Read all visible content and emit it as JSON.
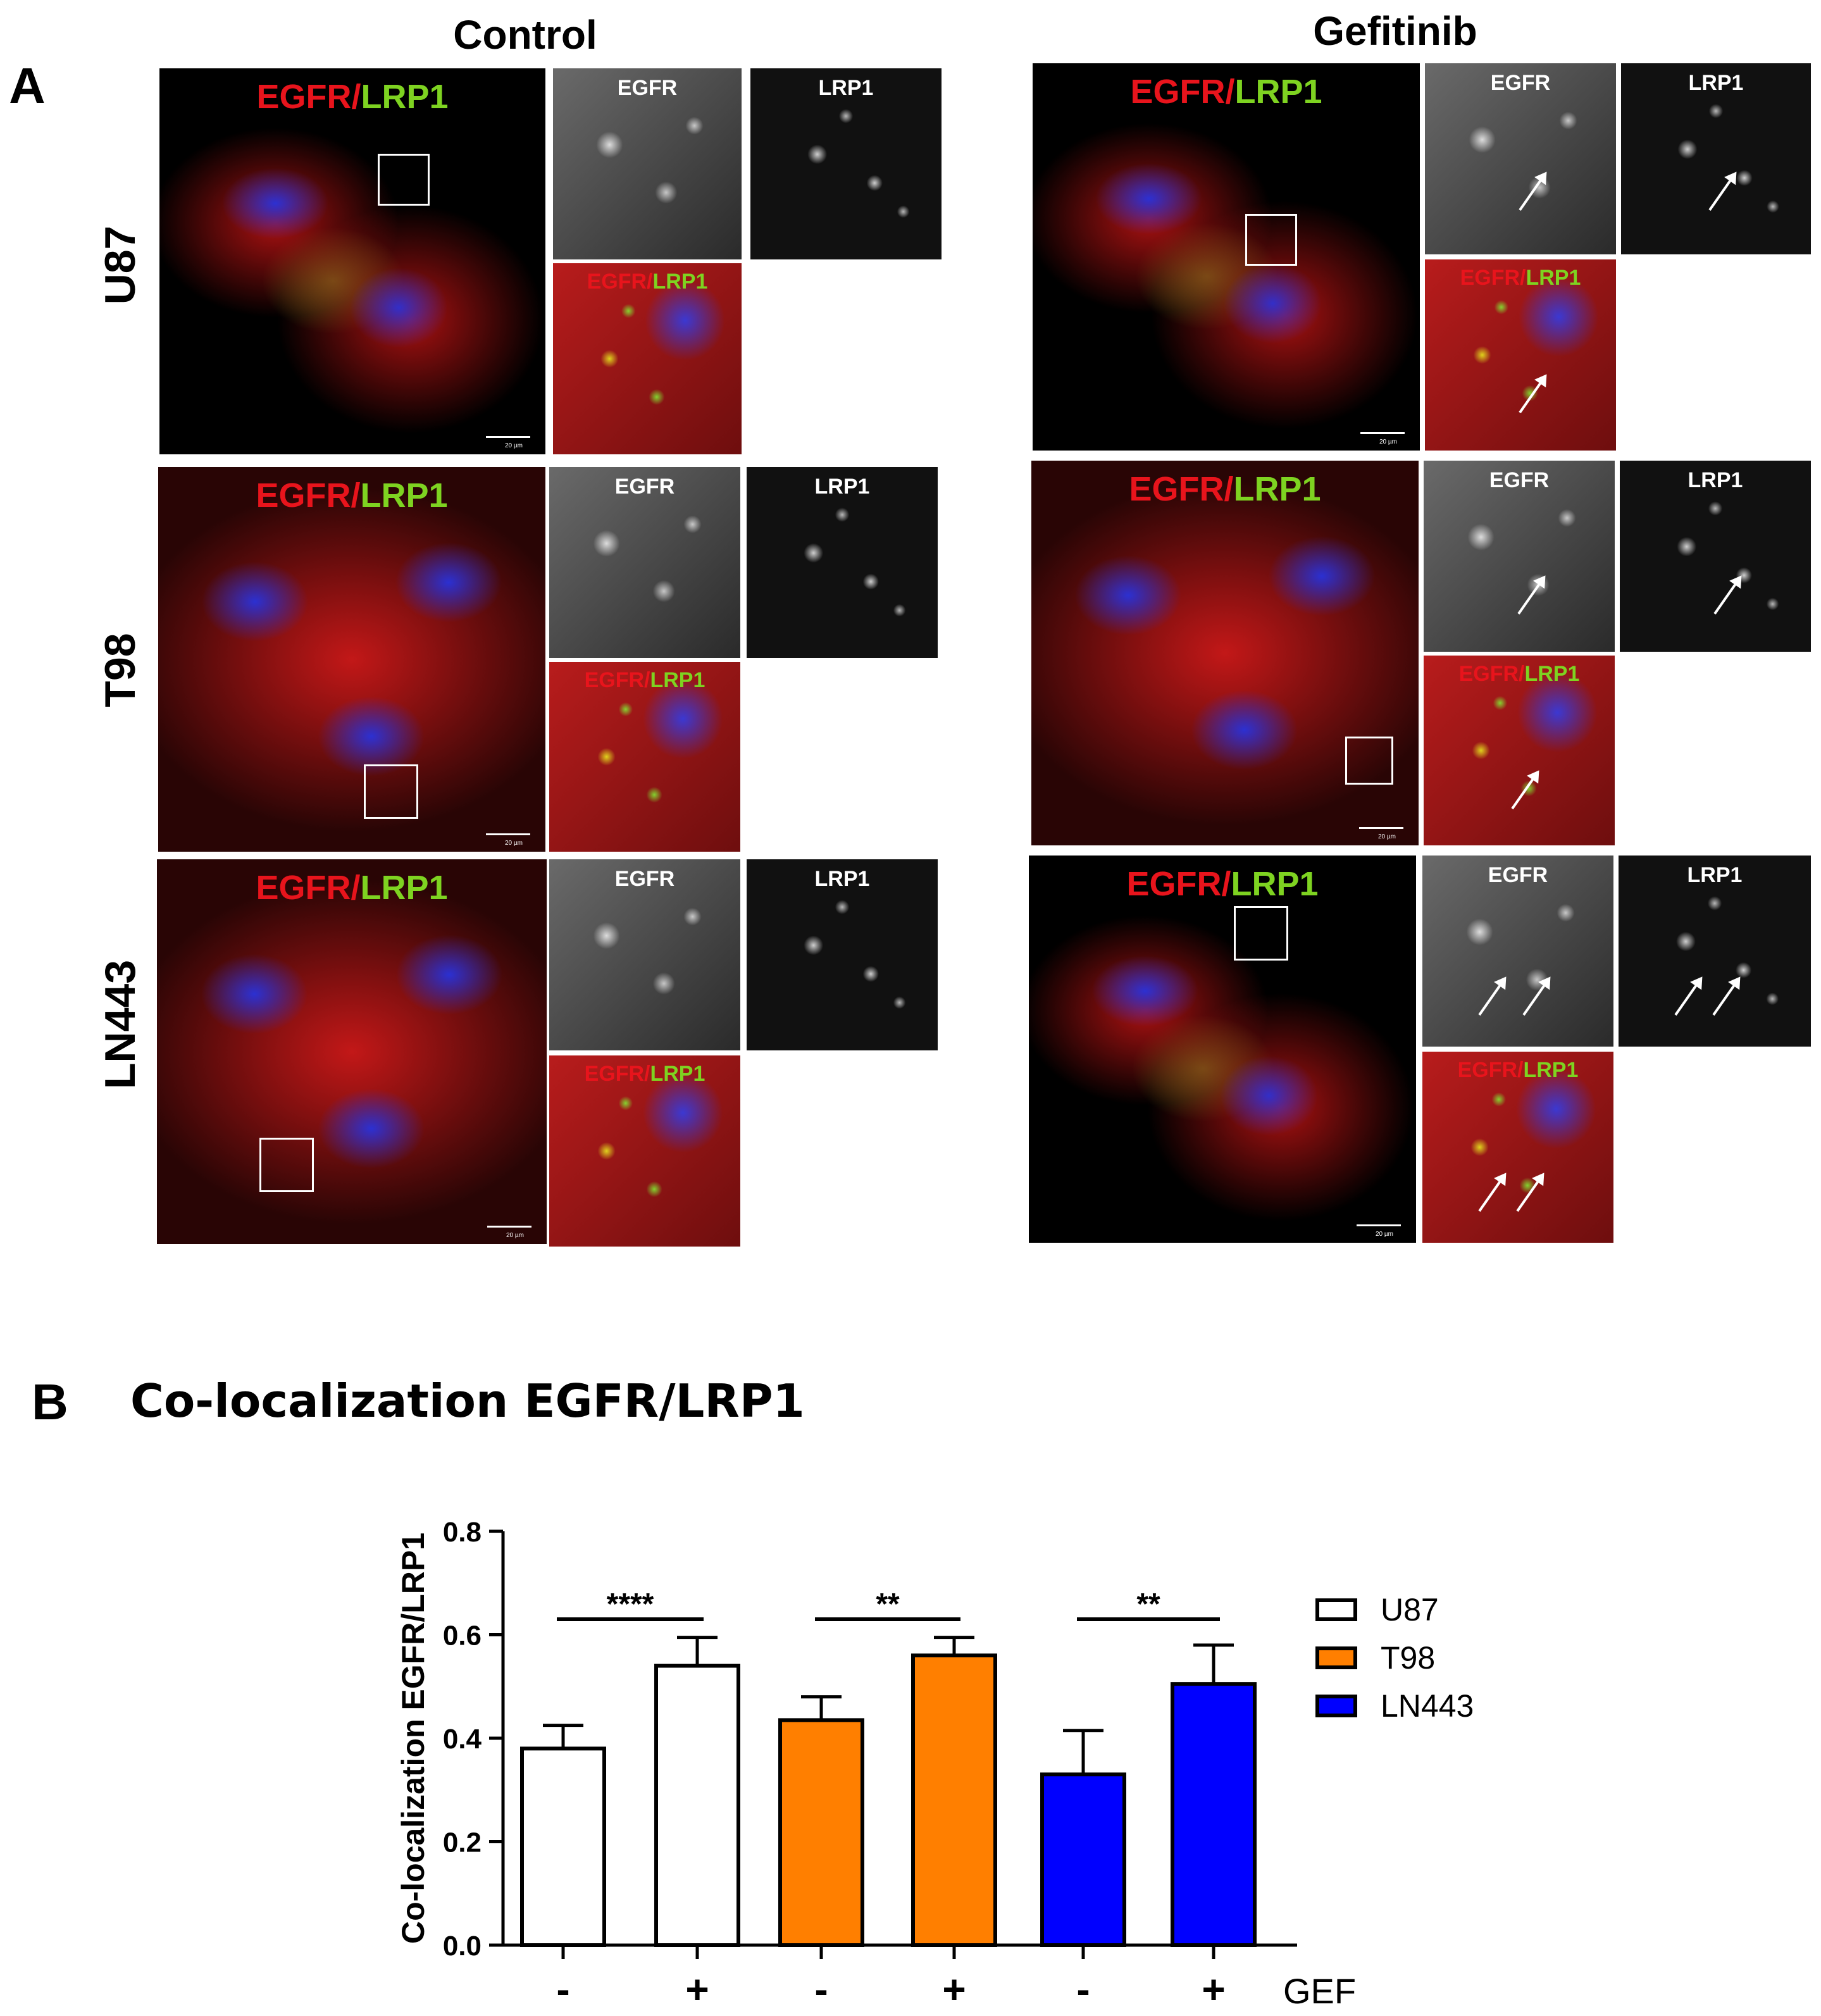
{
  "panel_a": {
    "letter": "A",
    "columns": [
      "Control",
      "Gefitinib"
    ],
    "rows": [
      "U87",
      "T98",
      "LN443"
    ],
    "main_label_red": "EGFR/",
    "main_label_green": "LRP1",
    "gray_labels": [
      "EGFR",
      "LRP1"
    ],
    "merge_label_red": "EGFR/",
    "merge_label_green": "LRP1",
    "scale_text": "20 µm"
  },
  "panel_b": {
    "letter": "B",
    "title": "Co-localization EGFR/LRP1",
    "gef_label": "GEF",
    "colors": {
      "U87": "#ffffff",
      "T98": "#ff7f00",
      "LN443": "#0000ff",
      "outline": "#000000"
    }
  },
  "chart_data": {
    "type": "bar",
    "title": "Co-localization EGFR/LRP1",
    "ylabel": "Co-localization EGFR/LRP1",
    "xlabel": "",
    "ylim": [
      0,
      0.8
    ],
    "yticks": [
      "0.0",
      "0.2",
      "0.4",
      "0.6",
      "0.8"
    ],
    "x_tick_labels": [
      "-",
      "+",
      "-",
      "+",
      "-",
      "+"
    ],
    "x_axis_suffix": "GEF",
    "legend_position": "right",
    "series": [
      {
        "name": "U87",
        "color": "#ffffff",
        "values": [
          0.38,
          0.54
        ],
        "errors": [
          0.045,
          0.055
        ]
      },
      {
        "name": "T98",
        "color": "#ff7f00",
        "values": [
          0.435,
          0.56
        ],
        "errors": [
          0.045,
          0.035
        ]
      },
      {
        "name": "LN443",
        "color": "#0000ff",
        "values": [
          0.33,
          0.505
        ],
        "errors": [
          0.085,
          0.075
        ]
      }
    ],
    "significance": [
      "****",
      "**",
      "**"
    ]
  }
}
